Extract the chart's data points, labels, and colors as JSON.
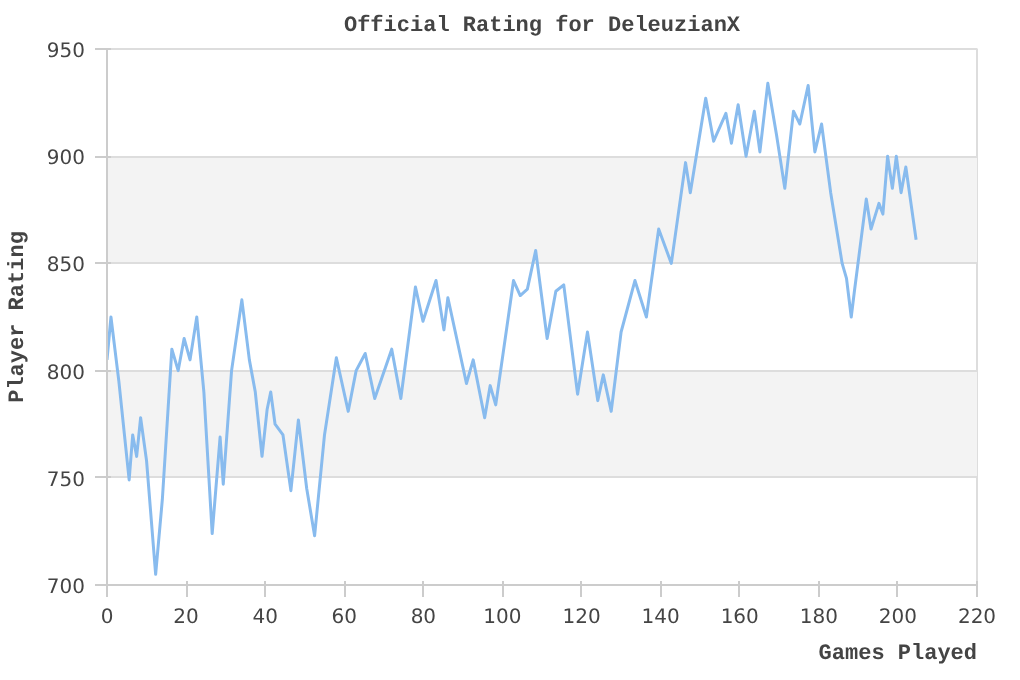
{
  "chart_data": {
    "type": "line",
    "title": "Official Rating for DeleuzianX",
    "xlabel": "Games Played",
    "ylabel": "Player Rating",
    "xlim": [
      0,
      220
    ],
    "xticks": [
      0,
      20,
      40,
      60,
      80,
      100,
      120,
      140,
      160,
      180,
      200,
      220
    ],
    "ylim": [
      700,
      950
    ],
    "yticks": [
      700,
      750,
      800,
      850,
      900,
      950
    ],
    "grid": "y",
    "marker": "none",
    "line_style": "solid",
    "series": [
      {
        "color": "#88bbee",
        "x": [
          0,
          1,
          3,
          5.6,
          6.5,
          7.5,
          8.5,
          10,
          12.3,
          14,
          16.4,
          18,
          19.5,
          21,
          22.7,
          24.5,
          26.6,
          28.6,
          29.4,
          31.5,
          34.1,
          36,
          37.5,
          39.2,
          40.5,
          41.4,
          42.5,
          44.5,
          46.5,
          48.4,
          50.5,
          52.5,
          55,
          58,
          61,
          63,
          65.3,
          67.7,
          72,
          74.3,
          78,
          79.9,
          83.2,
          85.2,
          86.2,
          90.9,
          92.6,
          95.5,
          96.9,
          98.3,
          102.8,
          104.5,
          106.3,
          108.4,
          111.3,
          113.5,
          115.5,
          119,
          121.5,
          124.1,
          125.5,
          127.5,
          130,
          133.5,
          136.4,
          139.5,
          142.7,
          146.3,
          147.5,
          151.4,
          153.4,
          156.5,
          157.9,
          159.6,
          161.6,
          163.7,
          165.1,
          167.1,
          169.3,
          171.4,
          173.6,
          175.2,
          177.3,
          179,
          180.7,
          183,
          185.9,
          187,
          188.2,
          189,
          192,
          193.2,
          195.2,
          196.2,
          197.4,
          198.6,
          199.6,
          200.8,
          202,
          204.6
        ],
        "values": [
          805,
          825,
          795,
          749,
          770,
          760,
          778,
          758,
          705,
          740,
          810,
          800,
          815,
          805,
          825,
          790,
          724,
          769,
          747,
          800,
          833,
          805,
          790,
          760,
          782,
          790,
          775,
          770,
          744,
          777,
          745,
          723,
          770,
          806,
          781,
          800,
          808,
          787,
          810,
          787,
          839,
          823,
          842,
          819,
          834,
          794,
          805,
          778,
          793,
          784,
          842,
          835,
          838,
          856,
          815,
          837,
          840,
          789,
          818,
          786,
          798,
          781,
          818,
          842,
          825,
          866,
          850,
          897,
          883,
          927,
          907,
          920,
          906,
          924,
          900,
          921,
          902,
          934,
          910,
          885,
          921,
          915,
          933,
          902,
          915,
          883,
          850,
          843,
          825,
          837,
          880,
          866,
          878,
          873,
          900,
          885,
          900,
          883,
          895,
          861
        ]
      }
    ]
  }
}
